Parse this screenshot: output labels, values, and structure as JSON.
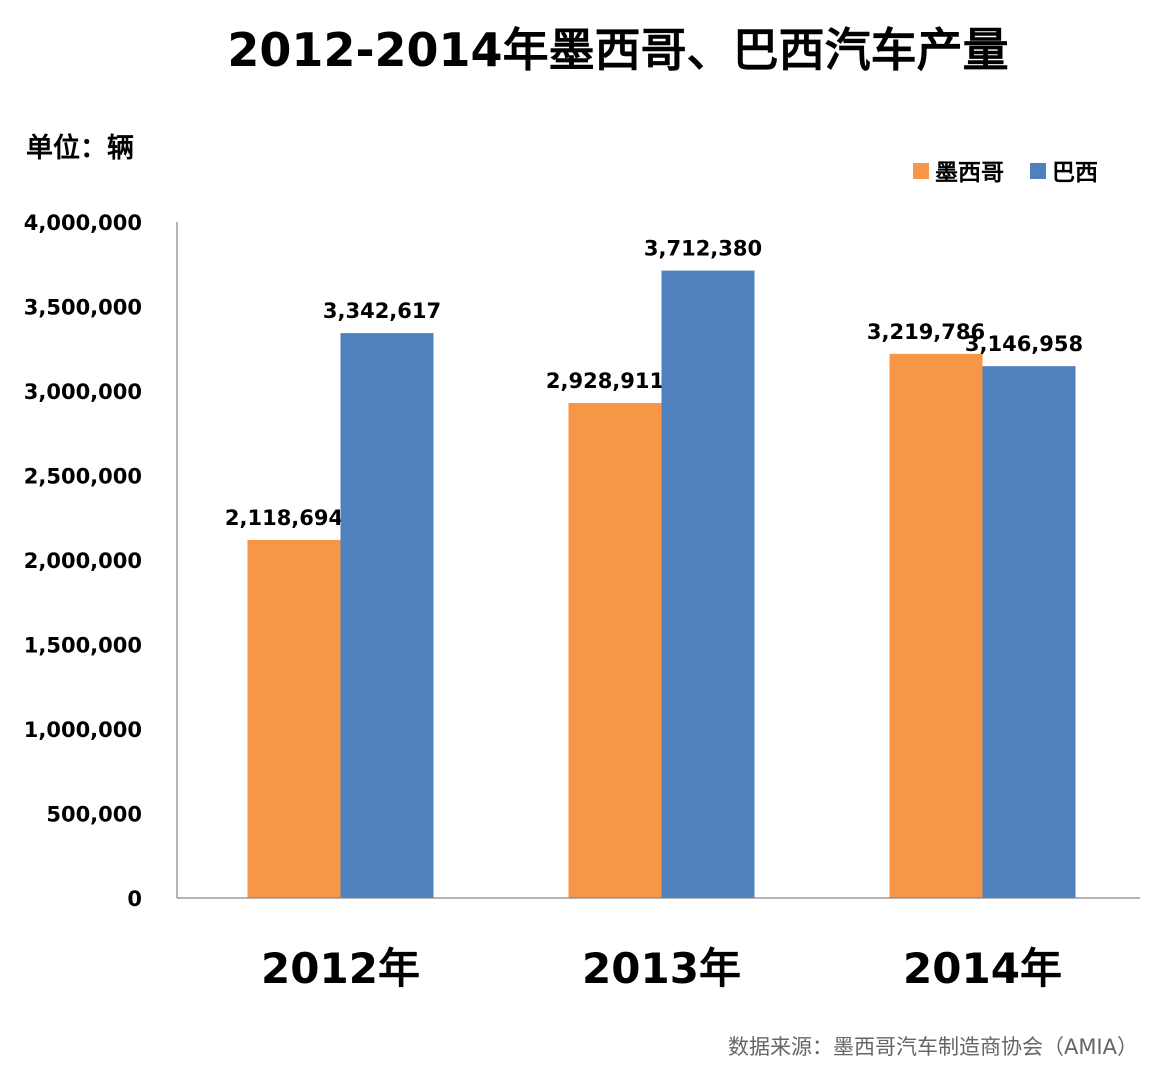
{
  "chart_data": {
    "type": "bar",
    "title": "2012-2014年墨西哥、巴西汽车产量",
    "unit_label": "单位：辆",
    "source": "数据来源：墨西哥汽车制造商协会（AMIA）",
    "categories": [
      "2012年",
      "2013年",
      "2014年"
    ],
    "series": [
      {
        "name": "墨西哥",
        "color": "#F79646",
        "values": [
          2118694,
          2928911,
          3219786
        ],
        "labels": [
          "2,118,694",
          "2,928,911",
          "3,219,786"
        ]
      },
      {
        "name": "巴西",
        "color": "#4F81BD",
        "values": [
          3342617,
          3712380,
          3146958
        ],
        "labels": [
          "3,342,617",
          "3,712,380",
          "3,146,958"
        ]
      }
    ],
    "ylim": [
      0,
      4000000
    ],
    "y_ticks": [
      0,
      500000,
      1000000,
      1500000,
      2000000,
      2500000,
      3000000,
      3500000,
      4000000
    ],
    "y_tick_labels": [
      "0",
      "500,000",
      "1,000,000",
      "1,500,000",
      "2,000,000",
      "2,500,000",
      "3,000,000",
      "3,500,000",
      "4,000,000"
    ],
    "grid": false,
    "legend_position": "top-right",
    "xlabel": "",
    "ylabel": ""
  }
}
